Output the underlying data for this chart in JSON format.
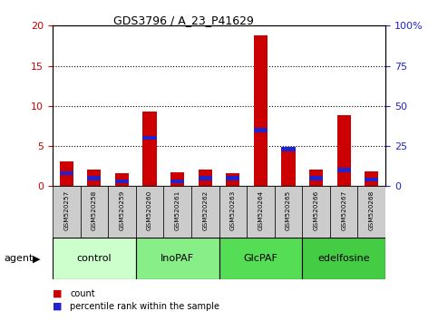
{
  "title": "GDS3796 / A_23_P41629",
  "samples": [
    "GSM520257",
    "GSM520258",
    "GSM520259",
    "GSM520260",
    "GSM520261",
    "GSM520262",
    "GSM520263",
    "GSM520264",
    "GSM520265",
    "GSM520266",
    "GSM520267",
    "GSM520268"
  ],
  "counts": [
    3.1,
    2.1,
    1.6,
    9.3,
    1.7,
    2.1,
    1.6,
    18.8,
    4.7,
    2.1,
    8.8,
    1.9
  ],
  "percentiles_pct": [
    8,
    5,
    3,
    30,
    3,
    5,
    5,
    35,
    23,
    5,
    10,
    4
  ],
  "groups": [
    {
      "label": "control",
      "start": 0,
      "end": 3,
      "color": "#ccffcc"
    },
    {
      "label": "InoPAF",
      "start": 3,
      "end": 6,
      "color": "#88ee88"
    },
    {
      "label": "GlcPAF",
      "start": 6,
      "end": 9,
      "color": "#55dd55"
    },
    {
      "label": "edelfosine",
      "start": 9,
      "end": 12,
      "color": "#44cc44"
    }
  ],
  "bar_color_red": "#cc0000",
  "bar_color_blue": "#2222cc",
  "bar_width": 0.5,
  "ylim_left": [
    0,
    20
  ],
  "ylim_right": [
    0,
    100
  ],
  "yticks_left": [
    0,
    5,
    10,
    15,
    20
  ],
  "yticks_right": [
    0,
    25,
    50,
    75,
    100
  ],
  "yticklabels_left": [
    "0",
    "5",
    "10",
    "15",
    "20"
  ],
  "yticklabels_right": [
    "0",
    "25",
    "50",
    "75",
    "100%"
  ],
  "grid_color": "black",
  "tick_color_left": "#cc0000",
  "tick_color_right": "#2222cc",
  "legend_count_color": "#cc0000",
  "legend_pct_color": "#2222cc",
  "agent_label": "agent",
  "figsize": [
    4.83,
    3.54
  ],
  "dpi": 100
}
